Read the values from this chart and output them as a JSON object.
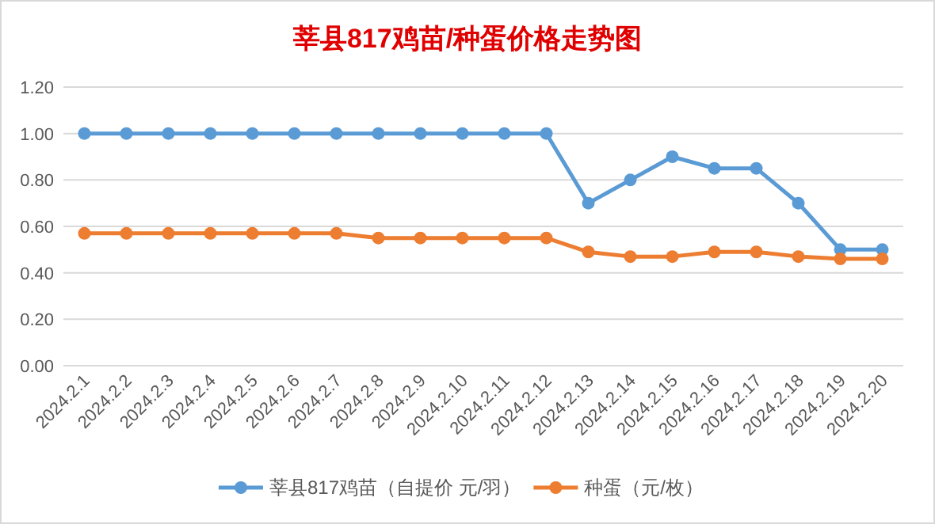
{
  "chart_data": {
    "type": "line",
    "title": "莘县817鸡苗/种蛋价格走势图",
    "categories": [
      "2024.2.1",
      "2024.2.2",
      "2024.2.3",
      "2024.2.4",
      "2024.2.5",
      "2024.2.6",
      "2024.2.7",
      "2024.2.8",
      "2024.2.9",
      "2024.2.10",
      "2024.2.11",
      "2024.2.12",
      "2024.2.13",
      "2024.2.14",
      "2024.2.15",
      "2024.2.16",
      "2024.2.17",
      "2024.2.18",
      "2024.2.19",
      "2024.2.20"
    ],
    "series": [
      {
        "name": "莘县817鸡苗（自提价 元/羽）",
        "color": "#5b9bd5",
        "values": [
          1.0,
          1.0,
          1.0,
          1.0,
          1.0,
          1.0,
          1.0,
          1.0,
          1.0,
          1.0,
          1.0,
          1.0,
          0.7,
          0.8,
          0.9,
          0.85,
          0.85,
          0.7,
          0.5,
          0.5
        ]
      },
      {
        "name": "种蛋（元/枚）",
        "color": "#ed7d31",
        "values": [
          0.57,
          0.57,
          0.57,
          0.57,
          0.57,
          0.57,
          0.57,
          0.55,
          0.55,
          0.55,
          0.55,
          0.55,
          0.49,
          0.47,
          0.47,
          0.49,
          0.49,
          0.47,
          0.46,
          0.46
        ]
      }
    ],
    "ylim": [
      0,
      1.2
    ],
    "yticks": [
      {
        "value": 0,
        "label": "0.00"
      },
      {
        "value": 0.2,
        "label": "0.20"
      },
      {
        "value": 0.4,
        "label": "0.40"
      },
      {
        "value": 0.6,
        "label": "0.60"
      },
      {
        "value": 0.8,
        "label": "0.80"
      },
      {
        "value": 1.0,
        "label": "1.00"
      },
      {
        "value": 1.2,
        "label": "1.20"
      }
    ],
    "grid": "y",
    "legend": "bottom",
    "marker": "circle",
    "line_style": "solid"
  }
}
